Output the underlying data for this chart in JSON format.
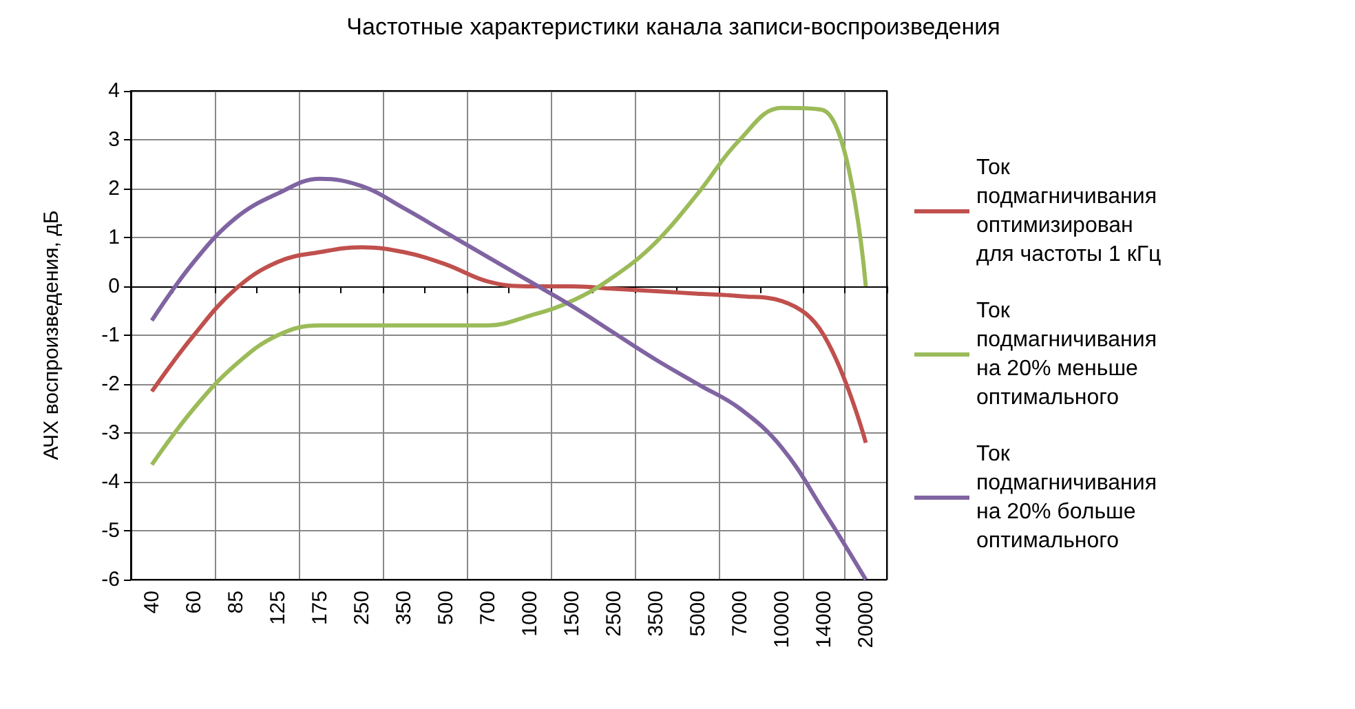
{
  "chart_data": {
    "type": "line",
    "title": "Частотные характеристики канала записи-воспроизведения",
    "ylabel": "АЧХ воспроизведения, дБ",
    "categories": [
      "40",
      "60",
      "85",
      "125",
      "175",
      "250",
      "350",
      "500",
      "700",
      "1000",
      "1500",
      "2500",
      "3500",
      "5000",
      "7000",
      "10000",
      "14000",
      "20000"
    ],
    "series": [
      {
        "name": "Ток подмагничивания оптимизирован для частоты 1 кГц",
        "color": "#c0504d",
        "values": [
          -2.15,
          -1.0,
          -0.05,
          0.5,
          0.7,
          0.8,
          0.7,
          0.45,
          0.1,
          0.0,
          0.0,
          -0.05,
          -0.1,
          -0.15,
          -0.2,
          -0.3,
          -1.0,
          -3.2
        ]
      },
      {
        "name": "Ток подмагничивания на 20% меньше оптимального",
        "color": "#9bbb59",
        "values": [
          -3.65,
          -2.5,
          -1.6,
          -1.0,
          -0.8,
          -0.8,
          -0.8,
          -0.8,
          -0.8,
          -0.6,
          -0.3,
          0.2,
          0.9,
          1.9,
          3.0,
          3.65,
          3.6,
          0.0
        ]
      },
      {
        "name": "Ток подмагничивания на 20% больше оптимального",
        "color": "#8064a2",
        "values": [
          -0.7,
          0.5,
          1.4,
          1.9,
          2.2,
          2.05,
          1.6,
          1.1,
          0.6,
          0.1,
          -0.4,
          -0.95,
          -1.5,
          -2.0,
          -2.5,
          -3.3,
          -4.6,
          -6.0
        ]
      }
    ],
    "ylim": [
      -6,
      4
    ],
    "yticks": [
      -6,
      -5,
      -4,
      -3,
      -2,
      -1,
      0,
      1,
      2,
      3,
      4
    ],
    "grid": true,
    "legend": "right",
    "marker": "none",
    "line_style": "solid"
  }
}
